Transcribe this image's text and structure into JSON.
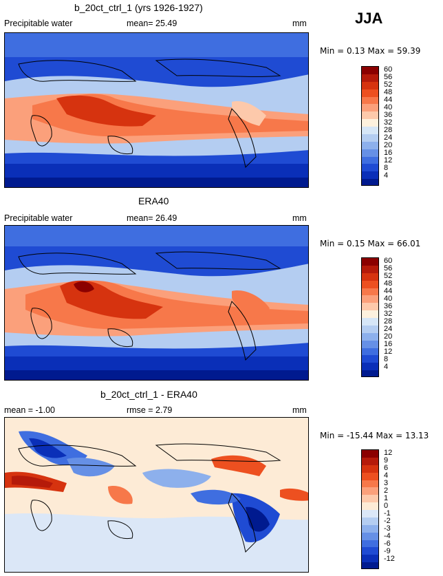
{
  "season": "JJA",
  "panels": [
    {
      "title": "b_20ct_ctrl_1 (yrs 1926-1927)",
      "var_label": "Precipitable water",
      "mean_text": "mean=  25.49",
      "units": "mm",
      "minmax_text": "Min =   0.13 Max =  59.39",
      "legend_ticks": [
        "60",
        "56",
        "52",
        "48",
        "44",
        "40",
        "36",
        "32",
        "28",
        "24",
        "20",
        "16",
        "12",
        "8",
        "4"
      ]
    },
    {
      "title": "ERA40",
      "var_label": "Precipitable water",
      "mean_text": "mean=  26.49",
      "units": "mm",
      "minmax_text": "Min =   0.15 Max =  66.01",
      "legend_ticks": [
        "60",
        "56",
        "52",
        "48",
        "44",
        "40",
        "36",
        "32",
        "28",
        "24",
        "20",
        "16",
        "12",
        "8",
        "4"
      ]
    },
    {
      "title": "b_20ct_ctrl_1 - ERA40",
      "mean_text": "mean =  -1.00",
      "rmse_text": "rmse =   2.79",
      "units": "mm",
      "minmax_text": "Min = -15.44 Max =  13.13",
      "legend_ticks": [
        "12",
        "9",
        "6",
        "4",
        "3",
        "2",
        "1",
        "0",
        "-1",
        "-2",
        "-3",
        "-4",
        "-6",
        "-9",
        "-12"
      ]
    }
  ],
  "colors": {
    "abs_scale": [
      "#8b0000",
      "#b51a0a",
      "#d6330f",
      "#ed5020",
      "#f7784a",
      "#fba07b",
      "#fdc9ab",
      "#fdf1de",
      "#d6e6f7",
      "#b4cdf1",
      "#8db0ec",
      "#6690e6",
      "#3f6ee0",
      "#1f4bd3",
      "#0a2fb8",
      "#001a8f"
    ],
    "diff_scale": [
      "#8b0000",
      "#b51a0a",
      "#d6330f",
      "#ed5020",
      "#f7784a",
      "#fba07b",
      "#fdc9ab",
      "#fdebd6",
      "#dbe7f7",
      "#b4cdf1",
      "#8db0ec",
      "#6690e6",
      "#3f6ee0",
      "#1f4bd3",
      "#0a2fb8",
      "#001a8f"
    ]
  }
}
